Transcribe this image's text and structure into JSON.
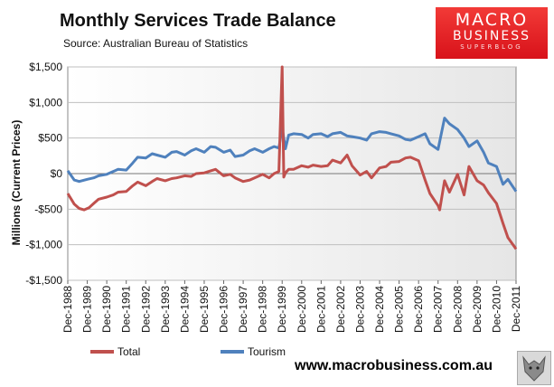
{
  "title": "Monthly Services Trade Balance",
  "source": "Source: Australian Bureau of Statistics",
  "logo": {
    "line1": "MACRO",
    "line2": "BUSINESS",
    "line3": "SUPERBLOG"
  },
  "website": "www.macrobusiness.com.au",
  "chart_data": {
    "type": "line",
    "title": "Monthly Services Trade Balance",
    "ylabel": "Millions (Current Prices)",
    "xlabel": "",
    "ylim": [
      -1500,
      1500
    ],
    "y_ticks": [
      1500,
      1000,
      500,
      0,
      -500,
      -1000,
      -1500
    ],
    "y_tick_labels": [
      "$1,500",
      "$1,000",
      "$500",
      "$0",
      "-$500",
      "-$1,000",
      "-$1,500"
    ],
    "x_tick_labels": [
      "Dec-1988",
      "Dec-1989",
      "Dec-1990",
      "Dec-1991",
      "Dec-1992",
      "Dec-1993",
      "Dec-1994",
      "Dec-1995",
      "Dec-1996",
      "Dec-1997",
      "Dec-1998",
      "Dec-1999",
      "Dec-2000",
      "Dec-2001",
      "Dec-2002",
      "Dec-2003",
      "Dec-2004",
      "Dec-2005",
      "Dec-2006",
      "Dec-2007",
      "Dec-2008",
      "Dec-2009",
      "Dec-2010",
      "Dec-2011"
    ],
    "x_start": 1988.917,
    "x_end": 2011.917,
    "grid": true,
    "legend": "bottom",
    "series": [
      {
        "name": "Total",
        "color": "#c0504d",
        "x": [
          1988.917,
          1989.25,
          1989.5,
          1989.75,
          1990.0,
          1990.25,
          1990.5,
          1990.917,
          1991.25,
          1991.5,
          1991.917,
          1992.25,
          1992.5,
          1992.917,
          1993.25,
          1993.5,
          1993.917,
          1994.25,
          1994.5,
          1994.917,
          1995.25,
          1995.5,
          1995.917,
          1996.25,
          1996.5,
          1996.917,
          1997.25,
          1997.5,
          1997.917,
          1998.25,
          1998.5,
          1998.917,
          1999.25,
          1999.5,
          1999.75,
          1999.917,
          2000.0,
          2000.083,
          2000.25,
          2000.5,
          2000.917,
          2001.25,
          2001.5,
          2001.917,
          2002.25,
          2002.5,
          2002.917,
          2003.25,
          2003.5,
          2003.917,
          2004.25,
          2004.5,
          2004.917,
          2005.25,
          2005.5,
          2005.917,
          2006.25,
          2006.5,
          2006.917,
          2007.25,
          2007.5,
          2007.917,
          2008.0,
          2008.25,
          2008.5,
          2008.917,
          2009.25,
          2009.5,
          2009.917,
          2010.25,
          2010.5,
          2010.917,
          2011.25,
          2011.5,
          2011.917
        ],
        "values": [
          -280,
          -430,
          -490,
          -510,
          -480,
          -420,
          -360,
          -330,
          -300,
          -260,
          -250,
          -170,
          -120,
          -170,
          -110,
          -70,
          -100,
          -70,
          -60,
          -30,
          -40,
          0,
          10,
          40,
          60,
          -30,
          -10,
          -60,
          -110,
          -90,
          -60,
          -10,
          -60,
          0,
          30,
          1500,
          -50,
          10,
          60,
          60,
          110,
          90,
          120,
          100,
          110,
          190,
          150,
          260,
          110,
          -20,
          30,
          -60,
          80,
          100,
          160,
          170,
          220,
          230,
          180,
          -90,
          -280,
          -450,
          -510,
          -100,
          -260,
          -10,
          -300,
          100,
          -100,
          -160,
          -270,
          -420,
          -700,
          -900,
          -1060
        ]
      },
      {
        "name": "Tourism",
        "color": "#4f81bd",
        "x": [
          1988.917,
          1989.25,
          1989.5,
          1989.917,
          1990.25,
          1990.5,
          1990.917,
          1991.25,
          1991.5,
          1991.917,
          1992.25,
          1992.5,
          1992.917,
          1993.25,
          1993.5,
          1993.917,
          1994.25,
          1994.5,
          1994.917,
          1995.25,
          1995.5,
          1995.917,
          1996.25,
          1996.5,
          1996.917,
          1997.25,
          1997.5,
          1997.917,
          1998.25,
          1998.5,
          1998.917,
          1999.25,
          1999.5,
          1999.75,
          1999.917,
          2000.083,
          2000.25,
          2000.5,
          2000.917,
          2001.25,
          2001.5,
          2001.917,
          2002.25,
          2002.5,
          2002.917,
          2003.25,
          2003.5,
          2003.917,
          2004.25,
          2004.5,
          2004.917,
          2005.25,
          2005.5,
          2005.917,
          2006.25,
          2006.5,
          2006.917,
          2007.25,
          2007.5,
          2007.917,
          2008.25,
          2008.5,
          2008.917,
          2009.25,
          2009.5,
          2009.917,
          2010.25,
          2010.5,
          2010.917,
          2011.25,
          2011.5,
          2011.917
        ],
        "values": [
          40,
          -90,
          -110,
          -80,
          -60,
          -30,
          -10,
          30,
          60,
          50,
          150,
          230,
          220,
          280,
          260,
          230,
          300,
          310,
          260,
          320,
          350,
          300,
          380,
          370,
          300,
          330,
          240,
          260,
          320,
          350,
          300,
          350,
          380,
          360,
          650,
          350,
          540,
          560,
          550,
          500,
          550,
          560,
          520,
          560,
          580,
          530,
          520,
          500,
          470,
          560,
          590,
          580,
          560,
          530,
          480,
          470,
          520,
          560,
          420,
          340,
          780,
          700,
          620,
          500,
          380,
          460,
          300,
          150,
          100,
          -150,
          -80,
          -250
        ]
      }
    ]
  }
}
